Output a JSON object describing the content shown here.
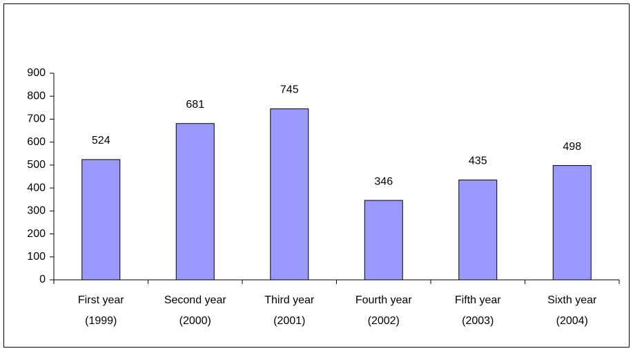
{
  "chart_data": {
    "type": "bar",
    "categories": [
      "First year (1999)",
      "Second year (2000)",
      "Third year (2001)",
      "Fourth year (2002)",
      "Fifth year (2003)",
      "Sixth year (2004)"
    ],
    "values": [
      524,
      681,
      745,
      346,
      435,
      498
    ],
    "color": "#9999ff",
    "ylim": [
      0,
      900
    ],
    "yticks": [
      0,
      100,
      200,
      300,
      400,
      500,
      600,
      700,
      800,
      900
    ],
    "grid": false
  }
}
